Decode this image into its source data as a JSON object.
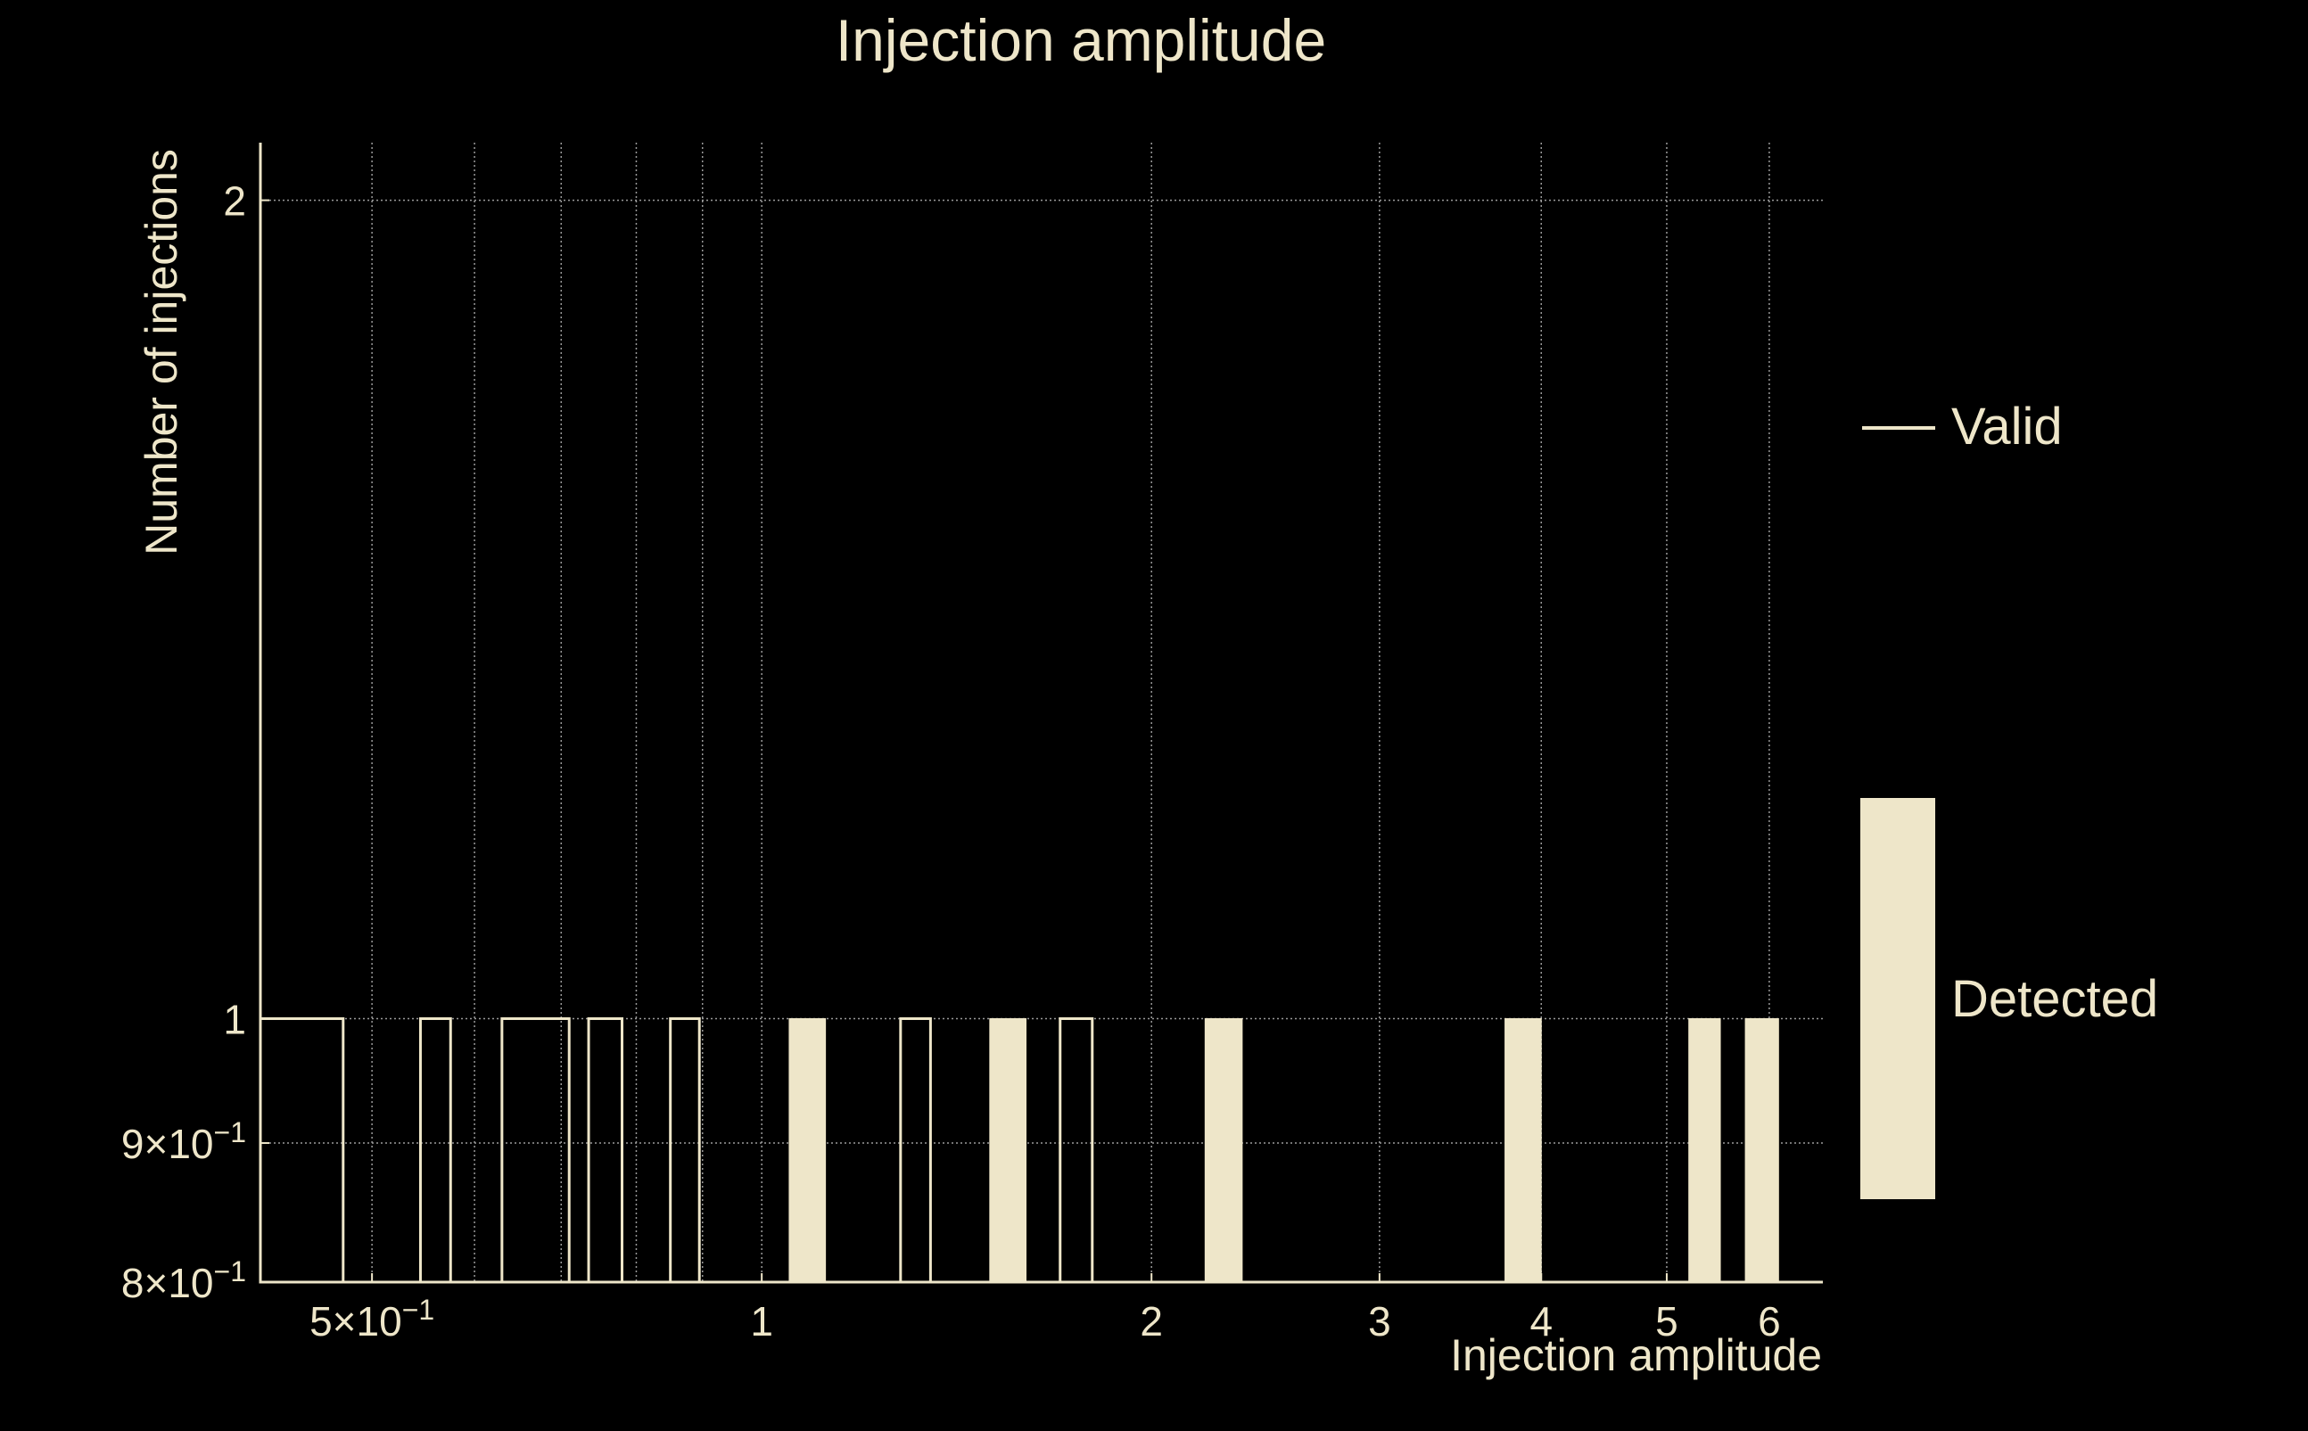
{
  "chart_data": {
    "type": "bar",
    "title": "Injection amplitude",
    "xlabel": "Injection amplitude",
    "ylabel": "Number of injections",
    "x_scale": "log",
    "y_scale": "log",
    "xlim": [
      0.41,
      6.6
    ],
    "ylim": [
      0.8,
      2.1
    ],
    "grid": true,
    "legend_position": "right",
    "x_ticks": [
      {
        "value": 0.5,
        "label": "5×10",
        "exp": "−1"
      },
      {
        "value": 1,
        "label": "1",
        "exp": ""
      },
      {
        "value": 2,
        "label": "2",
        "exp": ""
      },
      {
        "value": 3,
        "label": "3",
        "exp": ""
      },
      {
        "value": 4,
        "label": "4",
        "exp": ""
      },
      {
        "value": 5,
        "label": "5",
        "exp": ""
      },
      {
        "value": 6,
        "label": "6",
        "exp": ""
      }
    ],
    "x_minor_grid": [
      0.6,
      0.7,
      0.8,
      0.9
    ],
    "y_ticks": [
      {
        "value": 0.8,
        "label": "8×10",
        "exp": "−1"
      },
      {
        "value": 0.9,
        "label": "9×10",
        "exp": "−1"
      },
      {
        "value": 1,
        "label": "1",
        "exp": ""
      },
      {
        "value": 2,
        "label": "2",
        "exp": ""
      }
    ],
    "series": [
      {
        "name": "Valid",
        "style": "outline",
        "color": "#eee6c9",
        "bins": [
          {
            "x0": 0.41,
            "x1": 0.475,
            "count": 1
          },
          {
            "x0": 0.545,
            "x1": 0.575,
            "count": 1
          },
          {
            "x0": 0.63,
            "x1": 0.71,
            "count": 1
          },
          {
            "x0": 0.735,
            "x1": 0.78,
            "count": 1
          },
          {
            "x0": 0.85,
            "x1": 0.895,
            "count": 1
          },
          {
            "x0": 1.28,
            "x1": 1.35,
            "count": 1
          },
          {
            "x0": 1.7,
            "x1": 1.8,
            "count": 1
          }
        ]
      },
      {
        "name": "Detected",
        "style": "filled",
        "color": "#eee6c9",
        "bins": [
          {
            "x0": 1.05,
            "x1": 1.12,
            "count": 1
          },
          {
            "x0": 1.5,
            "x1": 1.6,
            "count": 1
          },
          {
            "x0": 2.2,
            "x1": 2.35,
            "count": 1
          },
          {
            "x0": 3.75,
            "x1": 4.0,
            "count": 1
          },
          {
            "x0": 5.2,
            "x1": 5.5,
            "count": 1
          },
          {
            "x0": 5.75,
            "x1": 6.1,
            "count": 1
          }
        ]
      }
    ]
  }
}
